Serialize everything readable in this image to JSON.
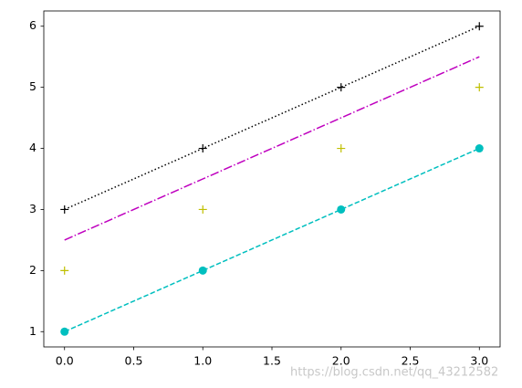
{
  "chart_data": {
    "type": "line",
    "x": [
      0,
      1,
      2,
      3
    ],
    "series": [
      {
        "color": "#00bfbf",
        "linestyle": "dashed",
        "marker": "circle",
        "values": [
          1,
          2,
          3,
          4
        ]
      },
      {
        "color": "#bfbf00",
        "linestyle": "none",
        "marker": "plus",
        "values": [
          2,
          3,
          4,
          5
        ]
      },
      {
        "color": "#bf00bf",
        "linestyle": "dashdot",
        "marker": "none",
        "values": [
          2.5,
          3.5,
          4.5,
          5.5
        ]
      },
      {
        "color": "#000000",
        "linestyle": "dotted",
        "marker": "plus",
        "values": [
          3,
          4,
          5,
          6
        ]
      }
    ],
    "xlim": [
      -0.15,
      3.15
    ],
    "xticks": [
      {
        "value": 0,
        "label": "0.0"
      },
      {
        "value": 0.5,
        "label": "0.5"
      },
      {
        "value": 1,
        "label": "1.0"
      },
      {
        "value": 1.5,
        "label": "1.5"
      },
      {
        "value": 2,
        "label": "2.0"
      },
      {
        "value": 2.5,
        "label": "2.5"
      },
      {
        "value": 3,
        "label": "3.0"
      }
    ],
    "ylim": [
      0.75,
      6.25
    ],
    "yticks": [
      1,
      2,
      3,
      4,
      5,
      6
    ],
    "grid": false,
    "watermark": "https://blog.csdn.net/qq_43212582"
  }
}
